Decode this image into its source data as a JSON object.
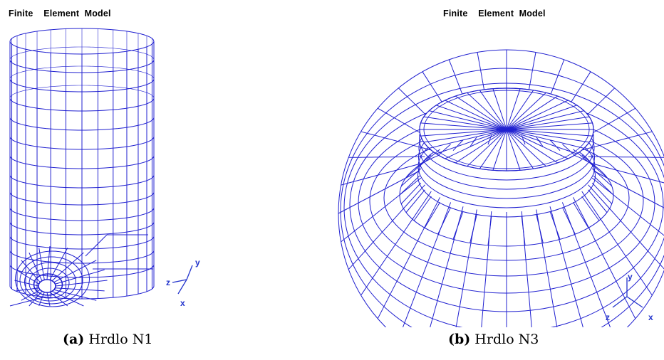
{
  "panels": [
    {
      "title": "Finite    Element  Model",
      "caption_label": "(a)",
      "caption_text": " Hrdlo N1",
      "axes": {
        "x": "x",
        "y": "y",
        "z": "z"
      }
    },
    {
      "title": "Finite    Element  Model",
      "caption_label": "(b)",
      "caption_text": " Hrdlo N3",
      "axes": {
        "x": "x",
        "y": "y",
        "z": "z"
      }
    }
  ],
  "colors": {
    "mesh": "#2020d0",
    "axes": "#2233cc",
    "text": "#000000"
  }
}
